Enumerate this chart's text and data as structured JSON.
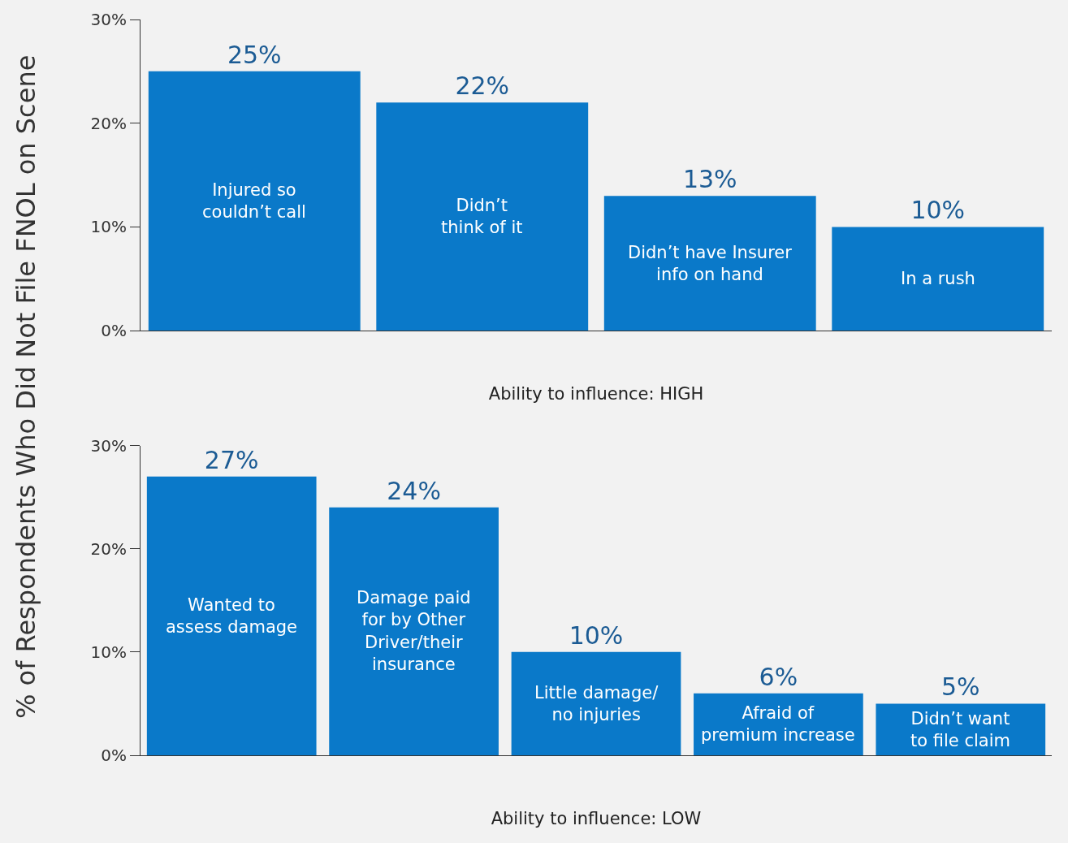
{
  "chart_data": [
    {
      "type": "bar",
      "ylabel": "% of Respondents Who Did Not File FNOL on Scene",
      "xlabel": "Ability to influence: HIGH",
      "categories": [
        "Injured so\ncouldn’t call",
        "Didn’t\nthink of it",
        "Didn’t have Insurer\ninfo on hand",
        "In a rush"
      ],
      "values": [
        25,
        22,
        13,
        10
      ],
      "value_labels": [
        "25%",
        "22%",
        "13%",
        "10%"
      ],
      "color": "#0a79c9",
      "ylim": [
        0,
        30
      ],
      "yticks": [
        {
          "value": 0,
          "label": "0%"
        },
        {
          "value": 10,
          "label": "10%"
        },
        {
          "value": 20,
          "label": "20%"
        },
        {
          "value": 30,
          "label": "30%"
        }
      ],
      "tick_labels": "y",
      "grid": false,
      "legend": false
    },
    {
      "type": "bar",
      "xlabel": "Ability to influence: LOW",
      "categories": [
        "Wanted to\nassess damage",
        "Damage paid\nfor by Other\nDriver/their\ninsurance",
        "Little damage/\nno injuries",
        "Afraid of\npremium increase",
        "Didn’t want\nto file claim"
      ],
      "values": [
        27,
        24,
        10,
        6,
        5
      ],
      "value_labels": [
        "27%",
        "24%",
        "10%",
        "6%",
        "5%"
      ],
      "color": "#0a79c9",
      "ylim": [
        0,
        30
      ],
      "yticks": [
        {
          "value": 0,
          "label": "0%"
        },
        {
          "value": 10,
          "label": "10%"
        },
        {
          "value": 20,
          "label": "20%"
        },
        {
          "value": 30,
          "label": "30%"
        }
      ],
      "tick_labels": "y",
      "grid": false,
      "legend": false
    }
  ]
}
